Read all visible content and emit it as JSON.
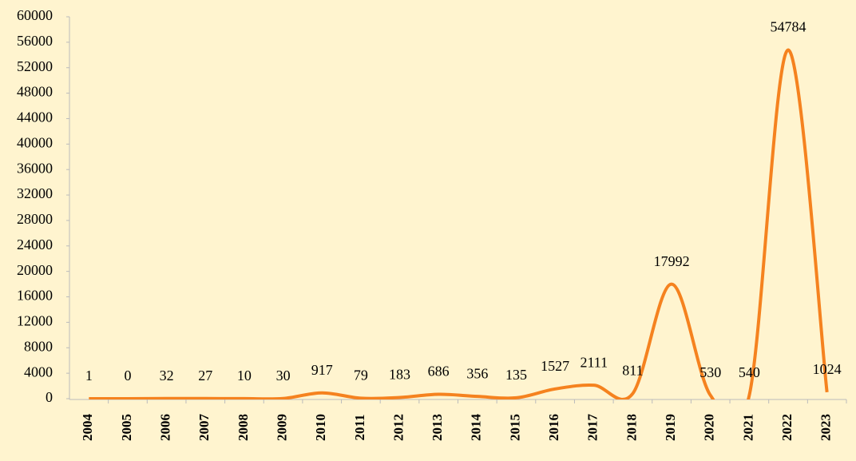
{
  "chart_data": {
    "type": "line",
    "categories": [
      "2004",
      "2005",
      "2006",
      "2007",
      "2008",
      "2009",
      "2010",
      "2011",
      "2012",
      "2013",
      "2014",
      "2015",
      "2016",
      "2017",
      "2018",
      "2019",
      "2020",
      "2021",
      "2022",
      "2023"
    ],
    "series": [
      {
        "color": "#f5821f",
        "values": [
          1,
          0,
          32,
          27,
          10,
          30,
          917,
          79,
          183,
          686,
          356,
          135,
          1527,
          2111,
          811,
          17992,
          530,
          540,
          54784,
          1024
        ]
      }
    ],
    "ylim": [
      0,
      60000
    ],
    "yticks": [
      0,
      4000,
      8000,
      12000,
      16000,
      20000,
      24000,
      28000,
      32000,
      36000,
      40000,
      44000,
      48000,
      52000,
      56000,
      60000
    ],
    "smooth": true
  }
}
